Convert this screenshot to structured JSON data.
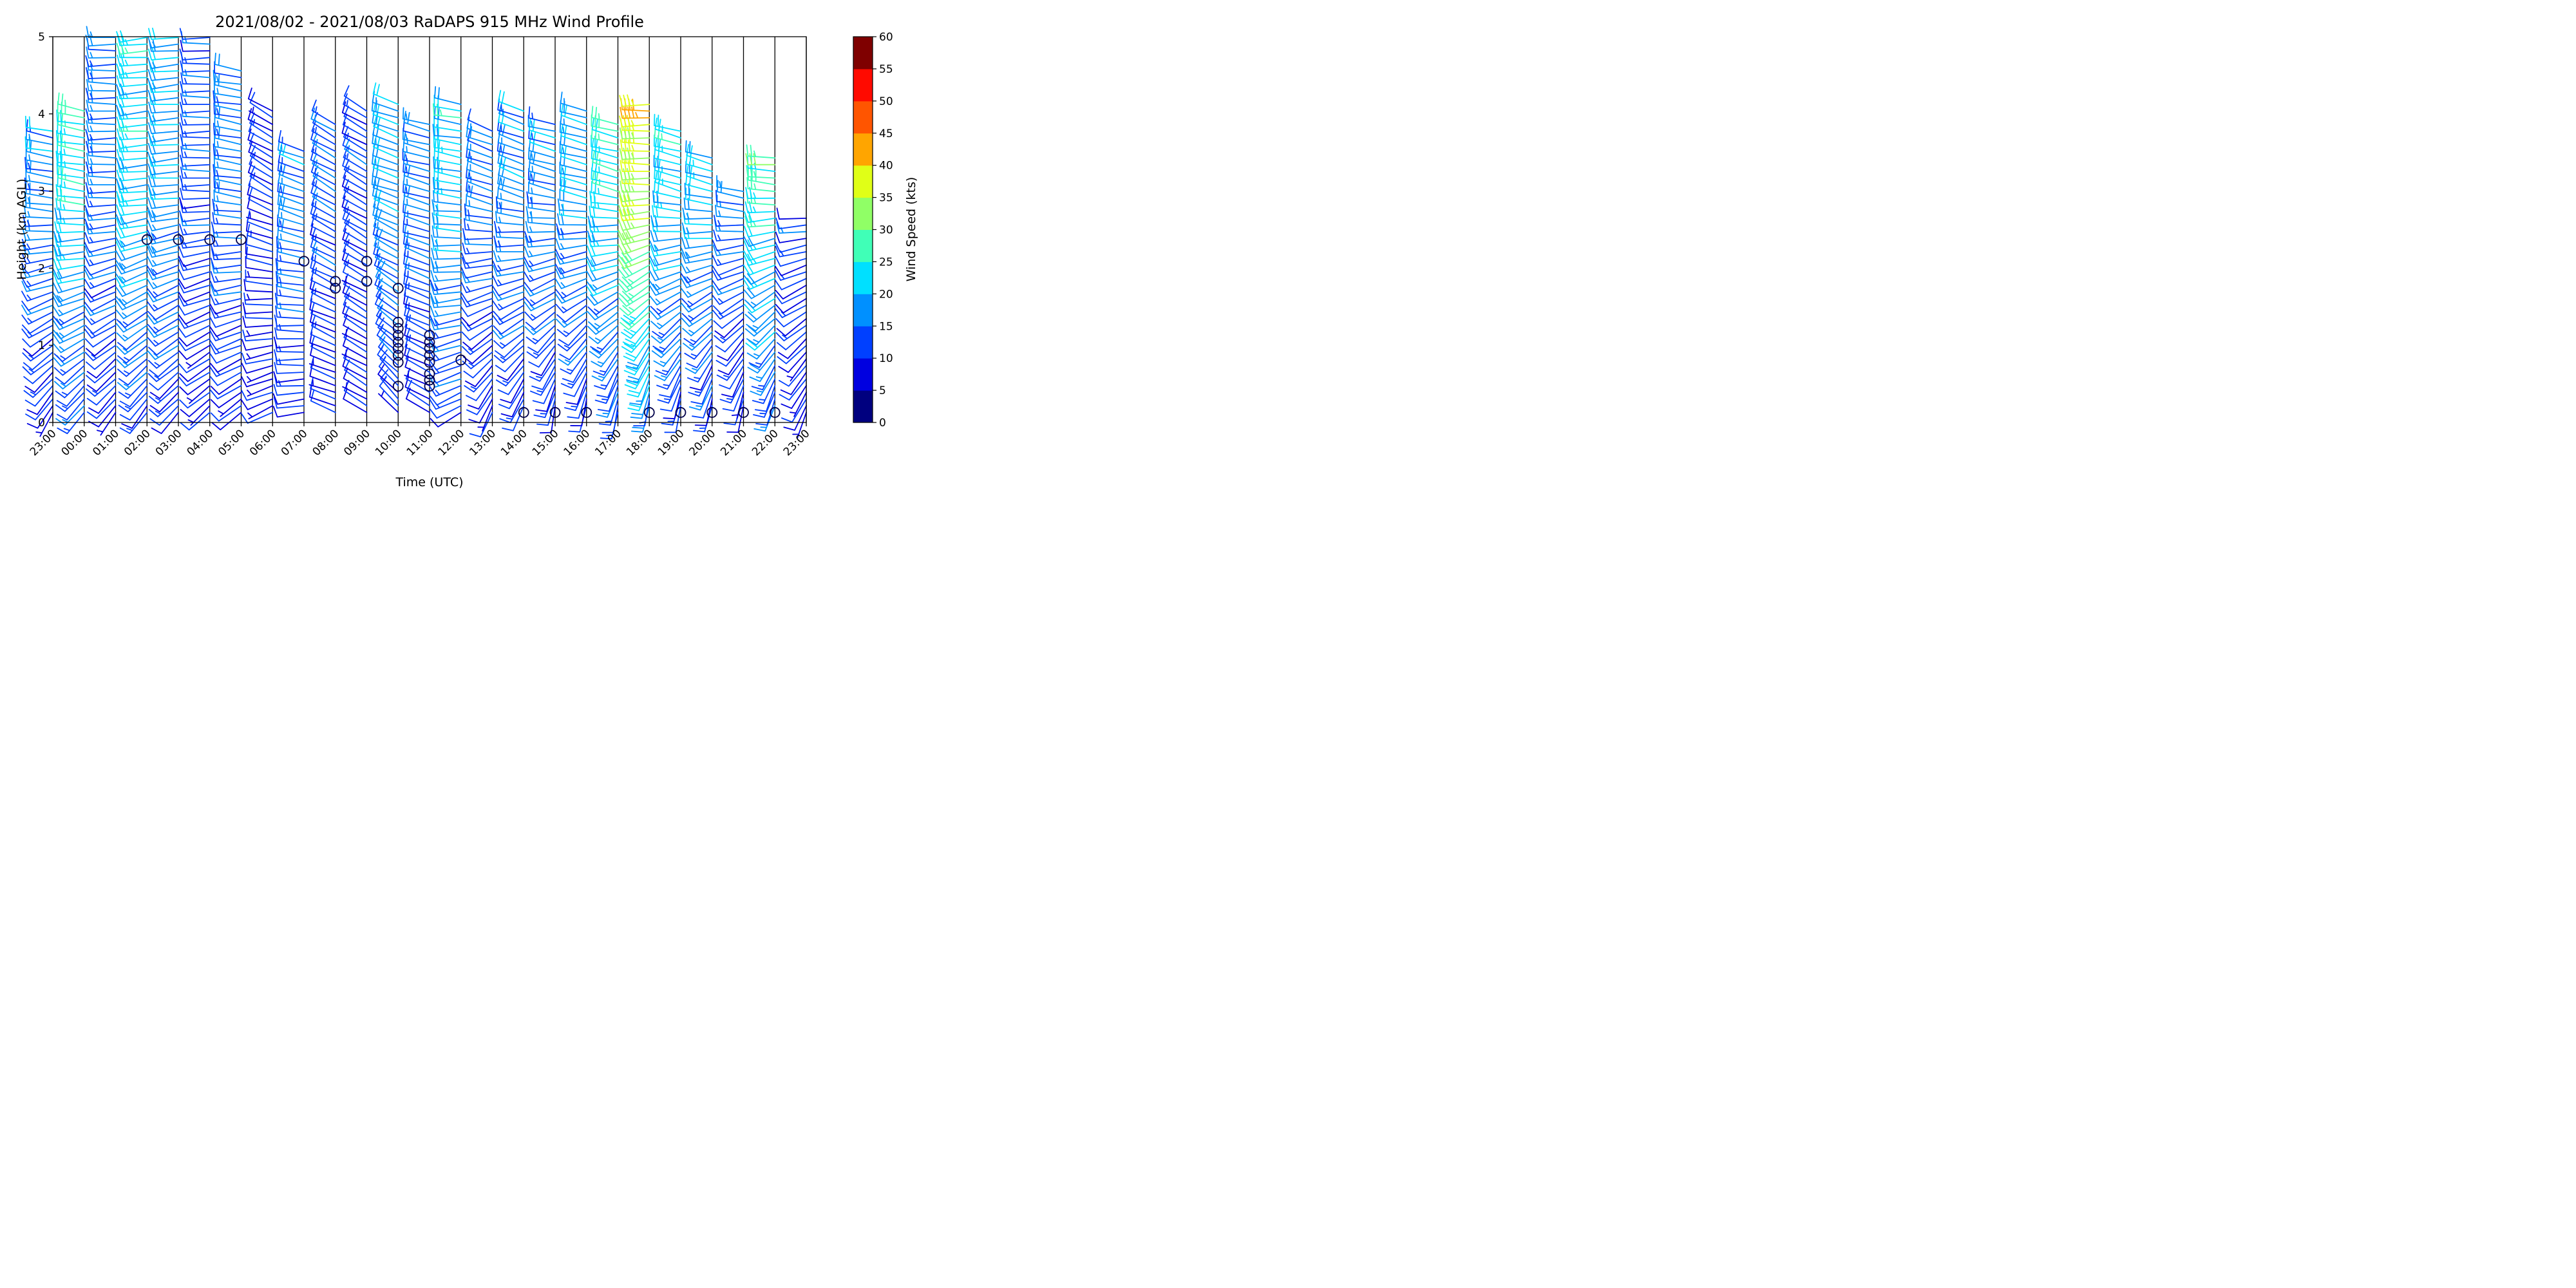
{
  "chart_data": {
    "type": "wind_barbs",
    "title": "2021/08/02 - 2021/08/03 RaDAPS 915 MHz Wind Profile",
    "xlabel": "Time (UTC)",
    "ylabel": "Height (km AGL)",
    "ylim": [
      0,
      5
    ],
    "yticks": [
      "0",
      "1",
      "2",
      "3",
      "4",
      "5"
    ],
    "xticks": [
      "23:00",
      "00:00",
      "01:00",
      "02:00",
      "03:00",
      "04:00",
      "05:00",
      "06:00",
      "07:00",
      "08:00",
      "09:00",
      "10:00",
      "11:00",
      "12:00",
      "13:00",
      "14:00",
      "15:00",
      "16:00",
      "17:00",
      "18:00",
      "19:00",
      "20:00",
      "21:00",
      "22:00",
      "23:00"
    ],
    "grid": "vertical lines at each hour",
    "colorbar": {
      "label": "Wind Speed (kts)",
      "ticks": [
        "0",
        "5",
        "10",
        "15",
        "20",
        "25",
        "30",
        "35",
        "40",
        "45",
        "50",
        "55",
        "60"
      ],
      "colors": [
        "#00007f",
        "#0000e0",
        "#0040ff",
        "#0090ff",
        "#00e0ff",
        "#40ffb7",
        "#90ff66",
        "#e0ff17",
        "#ffa500",
        "#ff5500",
        "#ff0a00",
        "#7f0000"
      ]
    },
    "calm_markers": [
      {
        "time": "02:00",
        "height_km": 2.37
      },
      {
        "time": "03:00",
        "height_km": 2.37
      },
      {
        "time": "04:00",
        "height_km": 2.37
      },
      {
        "time": "05:00",
        "height_km": 2.37
      },
      {
        "time": "07:00",
        "height_km": 2.09
      },
      {
        "time": "08:00",
        "height_km": 1.83
      },
      {
        "time": "08:00",
        "height_km": 1.74
      },
      {
        "time": "09:00",
        "height_km": 2.09
      },
      {
        "time": "09:00",
        "height_km": 1.83
      },
      {
        "time": "10:00",
        "height_km": 1.74
      },
      {
        "time": "10:00",
        "height_km": 1.3
      },
      {
        "time": "10:00",
        "height_km": 1.22
      },
      {
        "time": "10:00",
        "height_km": 1.13
      },
      {
        "time": "10:00",
        "height_km": 1.04
      },
      {
        "time": "10:00",
        "height_km": 0.96
      },
      {
        "time": "10:00",
        "height_km": 0.87
      },
      {
        "time": "10:00",
        "height_km": 0.78
      },
      {
        "time": "10:00",
        "height_km": 0.47
      },
      {
        "time": "11:00",
        "height_km": 1.13
      },
      {
        "time": "11:00",
        "height_km": 1.04
      },
      {
        "time": "11:00",
        "height_km": 0.96
      },
      {
        "time": "11:00",
        "height_km": 0.87
      },
      {
        "time": "11:00",
        "height_km": 0.78
      },
      {
        "time": "11:00",
        "height_km": 0.63
      },
      {
        "time": "11:00",
        "height_km": 0.55
      },
      {
        "time": "11:00",
        "height_km": 0.47
      },
      {
        "time": "12:00",
        "height_km": 0.81
      },
      {
        "time": "14:00",
        "height_km": 0.13
      },
      {
        "time": "15:00",
        "height_km": 0.13
      },
      {
        "time": "16:00",
        "height_km": 0.13
      },
      {
        "time": "18:00",
        "height_km": 0.13
      },
      {
        "time": "19:00",
        "height_km": 0.13
      },
      {
        "time": "20:00",
        "height_km": 0.13
      },
      {
        "time": "21:00",
        "height_km": 0.13
      },
      {
        "time": "22:00",
        "height_km": 0.13
      }
    ],
    "profiles": [
      {
        "time": "23:00",
        "low_dir_deg": 210,
        "high_dir_deg": 280,
        "max_speed_kts": 20,
        "top_km": 3.8
      },
      {
        "time": "00:00",
        "low_dir_deg": 215,
        "high_dir_deg": 280,
        "max_speed_kts": 28,
        "top_km": 4.1
      },
      {
        "time": "01:00",
        "low_dir_deg": 215,
        "high_dir_deg": 270,
        "max_speed_kts": 18,
        "top_km": 5.0
      },
      {
        "time": "02:00",
        "low_dir_deg": 215,
        "high_dir_deg": 265,
        "max_speed_kts": 26,
        "top_km": 5.0
      },
      {
        "time": "03:00",
        "low_dir_deg": 220,
        "high_dir_deg": 265,
        "max_speed_kts": 22,
        "top_km": 5.0
      },
      {
        "time": "04:00",
        "low_dir_deg": 225,
        "high_dir_deg": 270,
        "max_speed_kts": 15,
        "top_km": 5.0
      },
      {
        "time": "05:00",
        "low_dir_deg": 230,
        "high_dir_deg": 280,
        "max_speed_kts": 18,
        "top_km": 4.6
      },
      {
        "time": "06:00",
        "low_dir_deg": 240,
        "high_dir_deg": 300,
        "max_speed_kts": 12,
        "top_km": 4.1
      },
      {
        "time": "07:00",
        "low_dir_deg": 260,
        "high_dir_deg": 290,
        "max_speed_kts": 20,
        "top_km": 3.6
      },
      {
        "time": "08:00",
        "low_dir_deg": 290,
        "high_dir_deg": 300,
        "max_speed_kts": 16,
        "top_km": 3.9
      },
      {
        "time": "09:00",
        "low_dir_deg": 300,
        "high_dir_deg": 300,
        "max_speed_kts": 14,
        "top_km": 4.1
      },
      {
        "time": "10:00",
        "low_dir_deg": 320,
        "high_dir_deg": 290,
        "max_speed_kts": 22,
        "top_km": 4.2
      },
      {
        "time": "11:00",
        "low_dir_deg": 300,
        "high_dir_deg": 285,
        "max_speed_kts": 18,
        "top_km": 3.9
      },
      {
        "time": "12:00",
        "low_dir_deg": 240,
        "high_dir_deg": 280,
        "max_speed_kts": 25,
        "top_km": 4.2
      },
      {
        "time": "13:00",
        "low_dir_deg": 200,
        "high_dir_deg": 290,
        "max_speed_kts": 18,
        "top_km": 3.8
      },
      {
        "time": "14:00",
        "low_dir_deg": 195,
        "high_dir_deg": 290,
        "max_speed_kts": 20,
        "top_km": 4.1
      },
      {
        "time": "15:00",
        "low_dir_deg": 185,
        "high_dir_deg": 285,
        "max_speed_kts": 20,
        "top_km": 3.9
      },
      {
        "time": "16:00",
        "low_dir_deg": 185,
        "high_dir_deg": 285,
        "max_speed_kts": 22,
        "top_km": 4.1
      },
      {
        "time": "17:00",
        "low_dir_deg": 185,
        "high_dir_deg": 285,
        "max_speed_kts": 28,
        "top_km": 3.9
      },
      {
        "time": "18:00",
        "low_dir_deg": 185,
        "high_dir_deg": 270,
        "max_speed_kts": 43,
        "top_km": 4.2
      },
      {
        "time": "19:00",
        "low_dir_deg": 185,
        "high_dir_deg": 285,
        "max_speed_kts": 26,
        "top_km": 3.8
      },
      {
        "time": "20:00",
        "low_dir_deg": 185,
        "high_dir_deg": 285,
        "max_speed_kts": 24,
        "top_km": 3.5
      },
      {
        "time": "21:00",
        "low_dir_deg": 185,
        "high_dir_deg": 285,
        "max_speed_kts": 18,
        "top_km": 3.0
      },
      {
        "time": "22:00",
        "low_dir_deg": 190,
        "high_dir_deg": 275,
        "max_speed_kts": 30,
        "top_km": 3.5
      },
      {
        "time": "23:00",
        "low_dir_deg": 200,
        "high_dir_deg": 275,
        "max_speed_kts": 15,
        "top_km": 2.7
      }
    ]
  }
}
